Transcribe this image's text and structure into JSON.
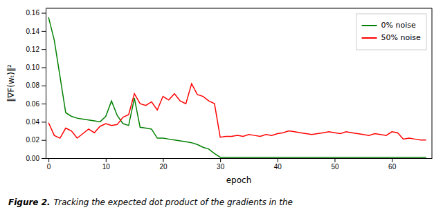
{
  "chart_data": {
    "type": "line",
    "xlabel": "epoch",
    "ylabel": "‖∇F(wₜ)‖²",
    "caption": [
      "Figure 2.",
      "Tracking the expected dot product of the gradients in the"
    ],
    "xlim": [
      -0.5,
      67
    ],
    "ylim": [
      0,
      0.165
    ],
    "xticks": [
      0,
      10,
      20,
      30,
      40,
      50,
      60
    ],
    "yticks": [
      {
        "value": 0,
        "label": "0.00"
      },
      0.02,
      0.04,
      0.06,
      0.08,
      {
        "value": 0.1,
        "label": "0.10"
      },
      0.12,
      0.14,
      0.16
    ],
    "grid": false,
    "legend": "upper right",
    "x": [
      0,
      1,
      2,
      3,
      4,
      5,
      6,
      7,
      8,
      9,
      10,
      11,
      12,
      13,
      14,
      15,
      16,
      17,
      18,
      19,
      20,
      21,
      22,
      23,
      24,
      25,
      26,
      27,
      28,
      29,
      30,
      31,
      32,
      33,
      34,
      35,
      36,
      37,
      38,
      39,
      40,
      41,
      42,
      43,
      44,
      45,
      46,
      47,
      48,
      49,
      50,
      51,
      52,
      53,
      54,
      55,
      56,
      57,
      58,
      59,
      60,
      61,
      62,
      63,
      64,
      65,
      66
    ],
    "series": [
      {
        "name": "0% noise",
        "color": "#008000",
        "values": [
          0.155,
          0.13,
          0.09,
          0.05,
          0.046,
          0.044,
          0.043,
          0.042,
          0.041,
          0.04,
          0.046,
          0.063,
          0.047,
          0.038,
          0.036,
          0.066,
          0.034,
          0.033,
          0.032,
          0.022,
          0.022,
          0.021,
          0.02,
          0.019,
          0.018,
          0.017,
          0.015,
          0.012,
          0.01,
          0.005,
          0.001,
          0.001,
          0.001,
          0.001,
          0.001,
          0.001,
          0.001,
          0.001,
          0.001,
          0.001,
          0.001,
          0.001,
          0.001,
          0.001,
          0.001,
          0.001,
          0.001,
          0.001,
          0.001,
          0.001,
          0.001,
          0.001,
          0.001,
          0.001,
          0.001,
          0.001,
          0.001,
          0.001,
          0.001,
          0.001,
          0.001,
          0.001,
          0.001,
          0.001,
          0.001,
          0.001,
          0.001
        ]
      },
      {
        "name": "50% noise",
        "color": "#ff0000",
        "values": [
          0.039,
          0.025,
          0.022,
          0.033,
          0.03,
          0.022,
          0.027,
          0.032,
          0.028,
          0.035,
          0.038,
          0.036,
          0.037,
          0.045,
          0.048,
          0.071,
          0.06,
          0.058,
          0.062,
          0.053,
          0.068,
          0.064,
          0.071,
          0.063,
          0.06,
          0.082,
          0.07,
          0.068,
          0.063,
          0.06,
          0.023,
          0.024,
          0.024,
          0.025,
          0.024,
          0.026,
          0.025,
          0.024,
          0.026,
          0.025,
          0.027,
          0.028,
          0.03,
          0.029,
          0.028,
          0.027,
          0.026,
          0.027,
          0.028,
          0.029,
          0.028,
          0.027,
          0.029,
          0.028,
          0.027,
          0.026,
          0.025,
          0.027,
          0.026,
          0.025,
          0.029,
          0.028,
          0.021,
          0.022,
          0.021,
          0.02,
          0.02
        ]
      }
    ]
  }
}
